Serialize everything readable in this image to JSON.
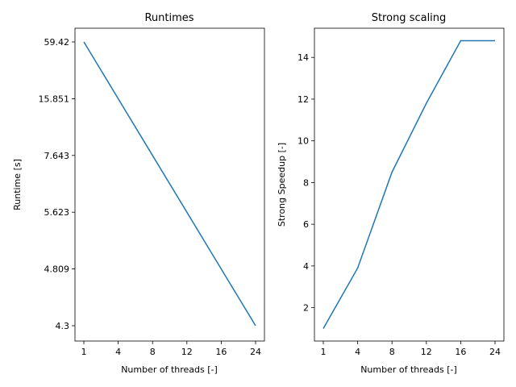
{
  "chart_data": [
    {
      "type": "line",
      "title": "Runtimes",
      "xlabel": "Number of threads [-]",
      "ylabel": "Runtime [s]",
      "x_ticks": [
        "1",
        "4",
        "8",
        "12",
        "16",
        "24"
      ],
      "y_ticks": [
        "59.42",
        "15.851",
        "7.643",
        "5.623",
        "4.809",
        "4.3"
      ],
      "series": [
        {
          "x_index": [
            0,
            1,
            2,
            3,
            4,
            5
          ],
          "y_index": [
            5,
            4,
            3,
            2,
            1,
            0
          ],
          "values": [
            59.42,
            15.851,
            7.643,
            5.623,
            4.809,
            4.3
          ],
          "color": "#1f77b4"
        }
      ],
      "grid": false
    },
    {
      "type": "line",
      "title": "Strong scaling",
      "xlabel": "Number of threads [-]",
      "ylabel": "Strong Speedup [-]",
      "x_ticks": [
        "1",
        "4",
        "8",
        "12",
        "16",
        "24"
      ],
      "y_ticks": [
        "2",
        "4",
        "6",
        "8",
        "10",
        "12",
        "14"
      ],
      "ylim": [
        0.4,
        15.4
      ],
      "series": [
        {
          "x_index": [
            0,
            1,
            2,
            3,
            4,
            5
          ],
          "values": [
            1.0,
            3.9,
            8.5,
            11.8,
            14.8,
            14.8
          ],
          "color": "#1f77b4"
        }
      ],
      "grid": false
    }
  ]
}
